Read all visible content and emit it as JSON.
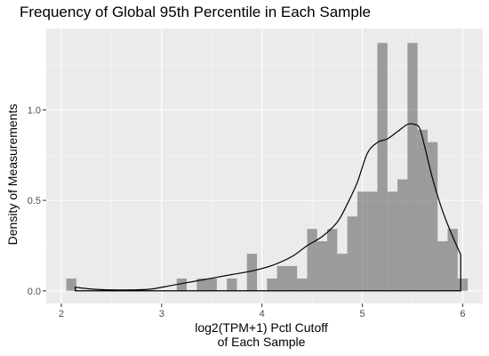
{
  "chart_data": {
    "type": "bar",
    "title": "Frequency of Global 95th Percentile in Each Sample",
    "xlabel_lines": [
      "log2(TPM+1) Pctl Cutoff",
      "of Each Sample"
    ],
    "ylabel": "Density of Measurements",
    "xlim": [
      1.85,
      6.2
    ],
    "ylim": [
      -0.07,
      1.45
    ],
    "x_ticks": [
      2,
      3,
      4,
      5,
      6
    ],
    "x_tick_labels": [
      "2",
      "3",
      "4",
      "5",
      "6"
    ],
    "y_ticks": [
      0.0,
      0.5,
      1.0
    ],
    "y_tick_labels": [
      "0.0",
      "0.5",
      "1.0"
    ],
    "grid": true,
    "background": "#ebebeb",
    "bar_color": "#595959",
    "bar_opacity": 0.55,
    "line_color": "#000000",
    "bin_width": 0.1,
    "bins": [
      {
        "x0": 2.05,
        "x1": 2.15,
        "density": 0.068
      },
      {
        "x0": 3.15,
        "x1": 3.25,
        "density": 0.068
      },
      {
        "x0": 3.35,
        "x1": 3.45,
        "density": 0.068
      },
      {
        "x0": 3.45,
        "x1": 3.55,
        "density": 0.068
      },
      {
        "x0": 3.65,
        "x1": 3.75,
        "density": 0.068
      },
      {
        "x0": 3.85,
        "x1": 3.95,
        "density": 0.205
      },
      {
        "x0": 4.05,
        "x1": 4.15,
        "density": 0.068
      },
      {
        "x0": 4.15,
        "x1": 4.25,
        "density": 0.137
      },
      {
        "x0": 4.25,
        "x1": 4.35,
        "density": 0.137
      },
      {
        "x0": 4.35,
        "x1": 4.45,
        "density": 0.068
      },
      {
        "x0": 4.45,
        "x1": 4.55,
        "density": 0.342
      },
      {
        "x0": 4.55,
        "x1": 4.65,
        "density": 0.274
      },
      {
        "x0": 4.65,
        "x1": 4.75,
        "density": 0.342
      },
      {
        "x0": 4.75,
        "x1": 4.85,
        "density": 0.205
      },
      {
        "x0": 4.85,
        "x1": 4.95,
        "density": 0.411
      },
      {
        "x0": 4.95,
        "x1": 5.05,
        "density": 0.548
      },
      {
        "x0": 5.05,
        "x1": 5.15,
        "density": 0.548
      },
      {
        "x0": 5.15,
        "x1": 5.25,
        "density": 1.37
      },
      {
        "x0": 5.25,
        "x1": 5.35,
        "density": 0.548
      },
      {
        "x0": 5.35,
        "x1": 5.45,
        "density": 0.616
      },
      {
        "x0": 5.45,
        "x1": 5.55,
        "density": 1.37
      },
      {
        "x0": 5.55,
        "x1": 5.65,
        "density": 0.89
      },
      {
        "x0": 5.65,
        "x1": 5.75,
        "density": 0.822
      },
      {
        "x0": 5.75,
        "x1": 5.85,
        "density": 0.274
      },
      {
        "x0": 5.85,
        "x1": 5.95,
        "density": 0.342
      },
      {
        "x0": 5.95,
        "x1": 6.05,
        "density": 0.068
      }
    ],
    "density_curve": {
      "x": [
        2.14,
        2.3,
        2.5,
        2.7,
        2.9,
        3.1,
        3.3,
        3.5,
        3.7,
        3.9,
        4.1,
        4.3,
        4.45,
        4.6,
        4.75,
        4.85,
        4.95,
        5.05,
        5.15,
        5.25,
        5.35,
        5.45,
        5.52,
        5.57,
        5.62,
        5.7,
        5.8,
        5.9,
        5.98
      ],
      "y": [
        0.02,
        0.01,
        0.005,
        0.005,
        0.01,
        0.03,
        0.05,
        0.07,
        0.09,
        0.11,
        0.14,
        0.19,
        0.25,
        0.3,
        0.38,
        0.48,
        0.6,
        0.76,
        0.82,
        0.84,
        0.88,
        0.92,
        0.92,
        0.9,
        0.8,
        0.62,
        0.44,
        0.3,
        0.2
      ]
    }
  }
}
